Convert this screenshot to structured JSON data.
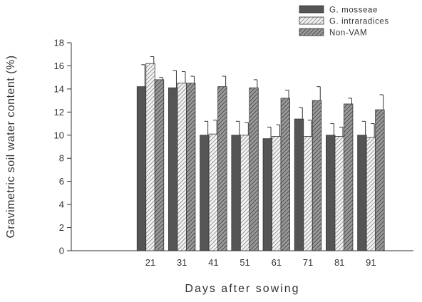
{
  "chart_data": {
    "type": "bar",
    "title": "",
    "xlabel": "Days after sowing",
    "ylabel": "Gravimetric soil water content (%)",
    "ylim": [
      0,
      18
    ],
    "yticks": [
      0,
      2,
      4,
      6,
      8,
      10,
      12,
      14,
      16,
      18
    ],
    "categories": [
      "21",
      "31",
      "41",
      "51",
      "61",
      "71",
      "81",
      "91"
    ],
    "legend_position": "top-right",
    "grid": false,
    "series": [
      {
        "name": "G. mosseae",
        "fill": "solid-dark",
        "color": "#555555",
        "values": [
          14.2,
          14.1,
          10.0,
          10.0,
          9.7,
          11.4,
          10.0,
          10.0
        ],
        "errors": [
          1.9,
          1.5,
          1.2,
          1.2,
          1.0,
          1.0,
          1.0,
          1.2
        ]
      },
      {
        "name": "G. intraradices",
        "fill": "light-hatch",
        "color": "#bbbbbb",
        "values": [
          16.2,
          14.5,
          10.1,
          10.0,
          9.9,
          9.9,
          9.9,
          9.8
        ],
        "errors": [
          0.6,
          1.0,
          1.2,
          1.1,
          1.0,
          1.4,
          0.8,
          1.2
        ]
      },
      {
        "name": "Non-VAM",
        "fill": "dark-hatch",
        "color": "#777777",
        "values": [
          14.8,
          14.5,
          14.2,
          14.1,
          13.2,
          13.0,
          12.7,
          12.2
        ],
        "errors": [
          0.2,
          0.6,
          0.9,
          0.7,
          0.7,
          1.2,
          0.5,
          1.3
        ]
      }
    ]
  }
}
